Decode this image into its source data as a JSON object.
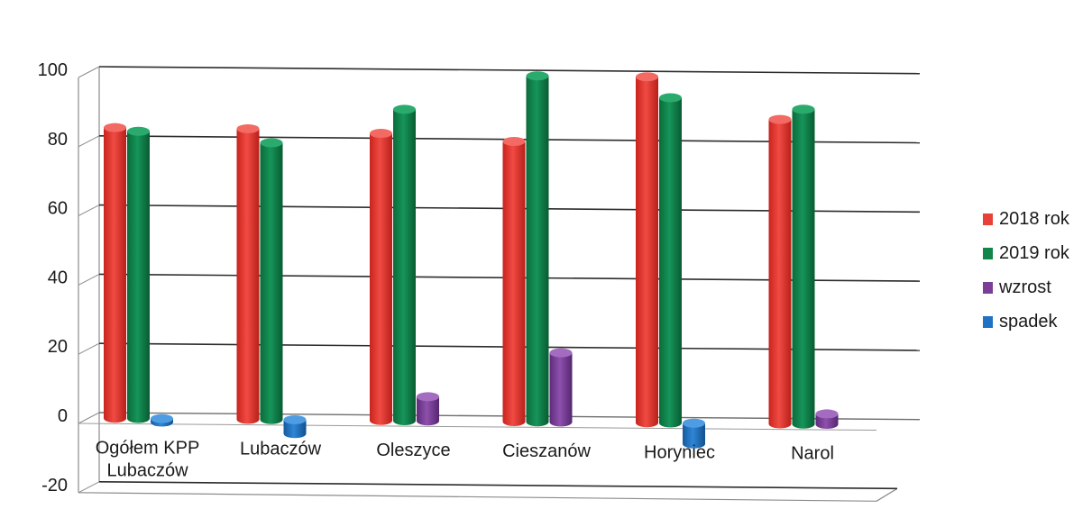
{
  "chart_data": {
    "type": "bar",
    "categories": [
      "Ogółem KPP Lubaczów",
      "Lubaczów",
      "Oleszyce",
      "Cieszanów",
      "Horyniec",
      "Narol"
    ],
    "category_labels": [
      [
        "Ogółem KPP",
        "Lubaczów"
      ],
      [
        "Lubaczów"
      ],
      [
        "Oleszyce"
      ],
      [
        "Cieszanów"
      ],
      [
        "Horyniec"
      ],
      [
        "Narol"
      ]
    ],
    "series": [
      {
        "name": "2018 rok",
        "color": "#e8413a",
        "values": [
          84,
          84,
          83,
          81,
          100,
          88
        ]
      },
      {
        "name": "2019 rok",
        "color": "#12854a",
        "values": [
          83,
          80,
          90,
          100,
          94,
          91
        ]
      },
      {
        "name": "wzrost",
        "color": "#7b3f9a",
        "values": [
          0,
          0,
          7,
          20,
          0,
          3
        ]
      },
      {
        "name": "spadek",
        "color": "#1f72c4",
        "values": [
          -1,
          -4,
          0,
          0,
          -6,
          0
        ]
      }
    ],
    "yticks": [
      "100",
      "80",
      "60",
      "40",
      "20",
      "0",
      "-20"
    ],
    "ylim": [
      -20,
      100
    ],
    "grid": true,
    "legend_position": "right",
    "style": "3d-cylinder"
  }
}
